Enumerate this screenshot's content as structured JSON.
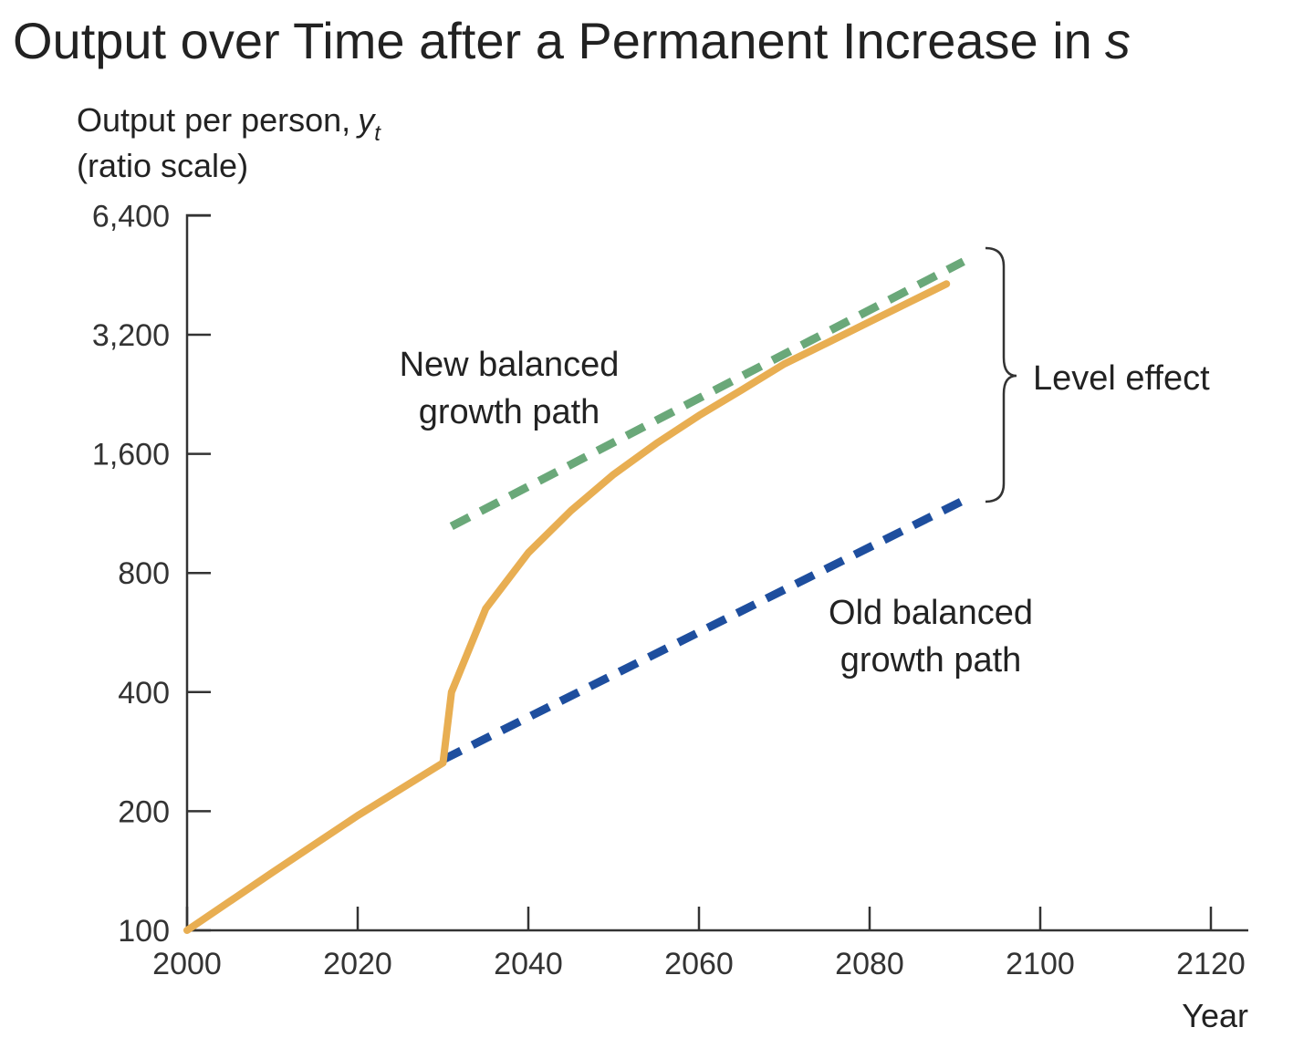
{
  "chart_data": {
    "type": "line",
    "title": "Output over Time after a Permanent Increase in",
    "title_variable": "s",
    "ylabel_line1": "Output per person,",
    "ylabel_var": "y",
    "ylabel_sub": "t",
    "ylabel_line2": "(ratio scale)",
    "xlabel": "Year",
    "y_scale": "log2",
    "ylim": [
      100,
      6400
    ],
    "xlim": [
      2000,
      2125
    ],
    "y_ticks": [
      100,
      200,
      400,
      800,
      1600,
      3200,
      6400
    ],
    "y_tick_labels": [
      "100",
      "200",
      "400",
      "800",
      "1,600",
      "3,200",
      "6,400"
    ],
    "x_ticks": [
      2000,
      2020,
      2040,
      2060,
      2080,
      2100,
      2120
    ],
    "x_tick_labels": [
      "2000",
      "2020",
      "2040",
      "2060",
      "2080",
      "2100",
      "2120"
    ],
    "grid": false,
    "series": [
      {
        "key": "output",
        "style": "solid",
        "color": "#E8AE52",
        "points": [
          [
            2000,
            100
          ],
          [
            2010,
            140
          ],
          [
            2020,
            195
          ],
          [
            2030,
            265
          ],
          [
            2031,
            400
          ],
          [
            2035,
            650
          ],
          [
            2040,
            900
          ],
          [
            2045,
            1150
          ],
          [
            2050,
            1420
          ],
          [
            2055,
            1700
          ],
          [
            2060,
            2000
          ],
          [
            2065,
            2320
          ],
          [
            2070,
            2700
          ],
          [
            2075,
            3050
          ],
          [
            2080,
            3450
          ],
          [
            2085,
            3900
          ],
          [
            2089,
            4300
          ]
        ]
      },
      {
        "key": "new-path",
        "style": "dashed",
        "color": "#6AA879",
        "points": [
          [
            2031,
            1050
          ],
          [
            2091,
            4900
          ]
        ]
      },
      {
        "key": "old-path",
        "style": "dashed",
        "color": "#1E4E9E",
        "points": [
          [
            2030,
            270
          ],
          [
            2091,
            1220
          ]
        ]
      }
    ],
    "annotations": {
      "new_path": [
        "New balanced",
        "growth path"
      ],
      "old_path": [
        "Old balanced",
        "growth path"
      ],
      "level_effect": "Level effect"
    }
  }
}
